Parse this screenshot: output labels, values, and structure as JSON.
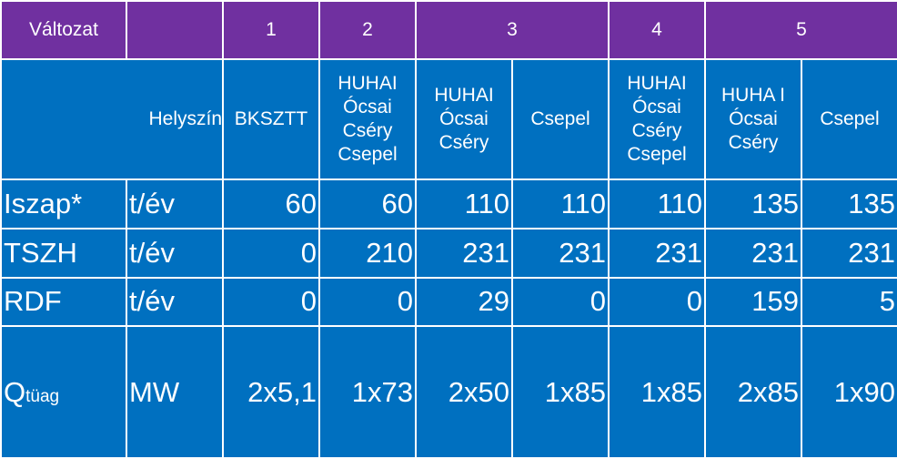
{
  "header": {
    "title_cell": "Változat",
    "variants": [
      "1",
      "2",
      "3",
      "4",
      "5"
    ]
  },
  "location_row": {
    "label": "Helyszín",
    "sites": [
      "BKSZTT",
      "HUHAI Ócsai Cséry Csepel",
      "HUHAI Ócsai Cséry",
      "Csepel",
      "HUHAI Ócsai Cséry Csepel",
      "HUHA I Ócsai Cséry",
      "Csepel"
    ]
  },
  "rows": [
    {
      "name": "Iszap*",
      "unit": "t/év",
      "values": [
        "60",
        "60",
        "110",
        "110",
        "110",
        "135",
        "135"
      ]
    },
    {
      "name": "TSZH",
      "unit": "t/év",
      "values": [
        "0",
        "210",
        "231",
        "231",
        "231",
        "231",
        "231"
      ]
    },
    {
      "name": "RDF",
      "unit": "t/év",
      "values": [
        "0",
        "0",
        "29",
        "0",
        "0",
        "159",
        "5"
      ]
    }
  ],
  "q_row": {
    "name": "Q",
    "name_sub": "tüag",
    "unit": "MW",
    "values": [
      "2x5,1",
      "1x73",
      "2x50",
      "1x85",
      "1x85",
      "2x85",
      "1x90"
    ]
  },
  "colors": {
    "header": "#7030A0",
    "body": "#0070C0",
    "grid": "#FFFFFF"
  }
}
